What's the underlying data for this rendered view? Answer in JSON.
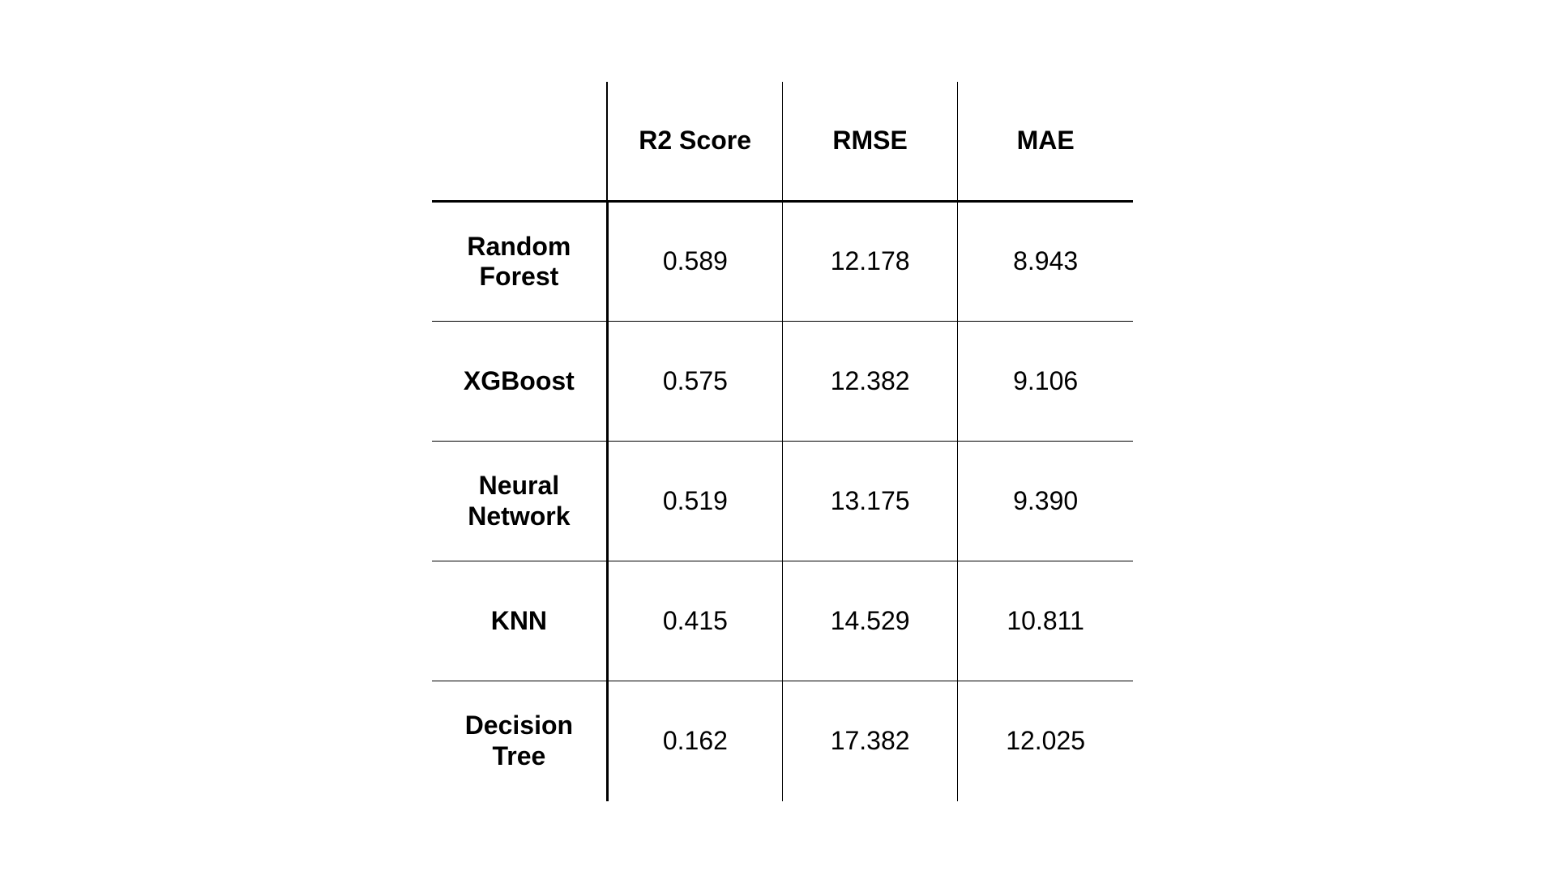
{
  "table": {
    "columns": [
      "R2 Score",
      "RMSE",
      "MAE"
    ],
    "rows": [
      {
        "model": "Random Forest",
        "r2": "0.589",
        "rmse": "12.178",
        "mae": "8.943"
      },
      {
        "model": "XGBoost",
        "r2": "0.575",
        "rmse": "12.382",
        "mae": "9.106"
      },
      {
        "model": "Neural Network",
        "r2": "0.519",
        "rmse": "13.175",
        "mae": "9.390"
      },
      {
        "model": "KNN",
        "r2": "0.415",
        "rmse": "14.529",
        "mae": "10.811"
      },
      {
        "model": "Decision Tree",
        "r2": "0.162",
        "rmse": "17.382",
        "mae": "12.025"
      }
    ]
  },
  "colors": {
    "background": "#ffffff",
    "text": "#000000",
    "lines": "#000000"
  }
}
